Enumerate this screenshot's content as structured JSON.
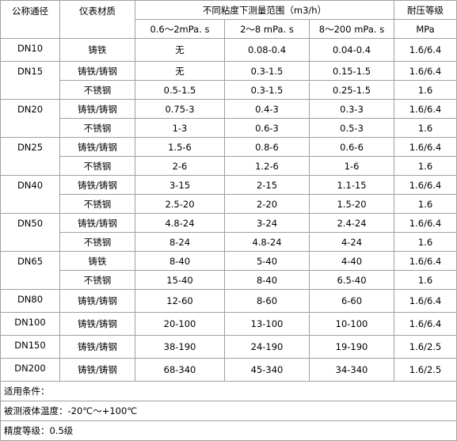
{
  "table": {
    "header": {
      "size": "公称通径",
      "material": "仪表材质",
      "range": "不同粘度下测量范围（m3/h）",
      "pressure": "耐压等级",
      "viscosities": [
        "0.6～2mPa. s",
        "2～8 mPa. s",
        "8～200 mPa. s"
      ],
      "pressure_unit": "MPa"
    },
    "groups": [
      {
        "size": "DN10",
        "rows": [
          [
            "铸铁",
            "无",
            "0.08-0.4",
            "0.04-0.4",
            "1.6/6.4"
          ]
        ]
      },
      {
        "size": "DN15",
        "rows": [
          [
            "铸铁/铸钢",
            "无",
            "0.3-1.5",
            "0.15-1.5",
            "1.6/6.4"
          ],
          [
            "不锈钢",
            "0.5-1.5",
            "0.3-1.5",
            "0.25-1.5",
            "1.6"
          ]
        ]
      },
      {
        "size": "DN20",
        "rows": [
          [
            "铸铁/铸钢",
            "0.75-3",
            "0.4-3",
            "0.3-3",
            "1.6/6.4"
          ],
          [
            "不锈钢",
            "1-3",
            "0.6-3",
            "0.5-3",
            "1.6"
          ]
        ]
      },
      {
        "size": "DN25",
        "rows": [
          [
            "铸铁/铸钢",
            "1.5-6",
            "0.8-6",
            "0.6-6",
            "1.6/6.4"
          ],
          [
            "不锈钢",
            "2-6",
            "1.2-6",
            "1-6",
            "1.6"
          ]
        ]
      },
      {
        "size": "DN40",
        "rows": [
          [
            "铸铁/铸钢",
            "3-15",
            "2-15",
            "1.1-15",
            "1.6/6.4"
          ],
          [
            "不锈钢",
            "2.5-20",
            "2-20",
            "1.5-20",
            "1.6"
          ]
        ]
      },
      {
        "size": "DN50",
        "rows": [
          [
            "铸铁/铸钢",
            "4.8-24",
            "3-24",
            "2.4-24",
            "1.6/6.4"
          ],
          [
            "不锈钢",
            "8-24",
            "4.8-24",
            "4-24",
            "1.6"
          ]
        ]
      },
      {
        "size": "DN65",
        "rows": [
          [
            "铸铁",
            "8-40",
            "5-40",
            "4-40",
            "1.6/6.4"
          ],
          [
            "不锈钢",
            "15-40",
            "8-40",
            "6.5-40",
            "1.6"
          ]
        ]
      },
      {
        "size": "DN80",
        "rows": [
          [
            "铸铁/铸钢",
            "12-60",
            "8-60",
            "6-60",
            "1.6/6.4"
          ]
        ]
      },
      {
        "size": "DN100",
        "rows": [
          [
            "铸铁/铸钢",
            "20-100",
            "13-100",
            "10-100",
            "1.6/6.4"
          ]
        ]
      },
      {
        "size": "DN150",
        "rows": [
          [
            "铸铁/铸钢",
            "38-190",
            "24-190",
            "19-190",
            "1.6/2.5"
          ]
        ]
      },
      {
        "size": "DN200",
        "rows": [
          [
            "铸铁/铸钢",
            "68-340",
            "45-340",
            "34-340",
            "1.6/2.5"
          ]
        ]
      }
    ],
    "notes": [
      "适用条件：",
      "被测液体温度：-20℃～+100℃",
      "精度等级：0.5级"
    ]
  }
}
